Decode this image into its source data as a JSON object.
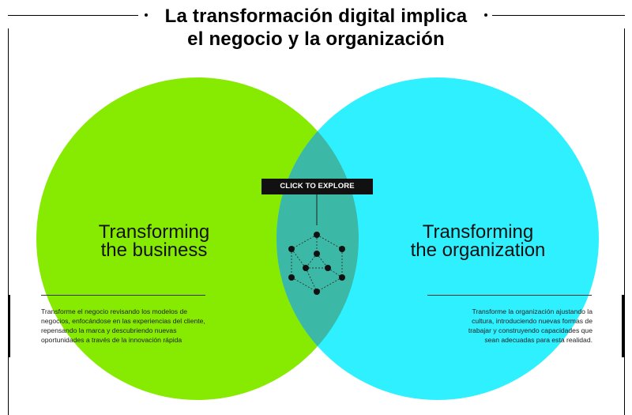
{
  "title": {
    "line1": "La transformación digital implica",
    "line2": "el negocio y la organización"
  },
  "left": {
    "heading_line1": "Transforming",
    "heading_line2": "the business",
    "description": "Transforme el negocio revisando los modelos de negocios, enfocándose en las experiencias del cliente, repensando la marca y descubriendo nuevas oportunidades a través de la innovación rápida",
    "color": "#86eb00"
  },
  "right": {
    "heading_line1": "Transforming",
    "heading_line2": "the organization",
    "description": "Transforme la organización ajustando la cultura, introduciendo nuevas formas de trabajar y construyendo capacidades que sean adecuadas para esta realidad.",
    "color": "#2ef0ff"
  },
  "overlap_color": "#3bb8a6",
  "explore_button": {
    "label": "CLICK TO EXPLORE"
  },
  "network_icon": "network-hexagon-icon"
}
